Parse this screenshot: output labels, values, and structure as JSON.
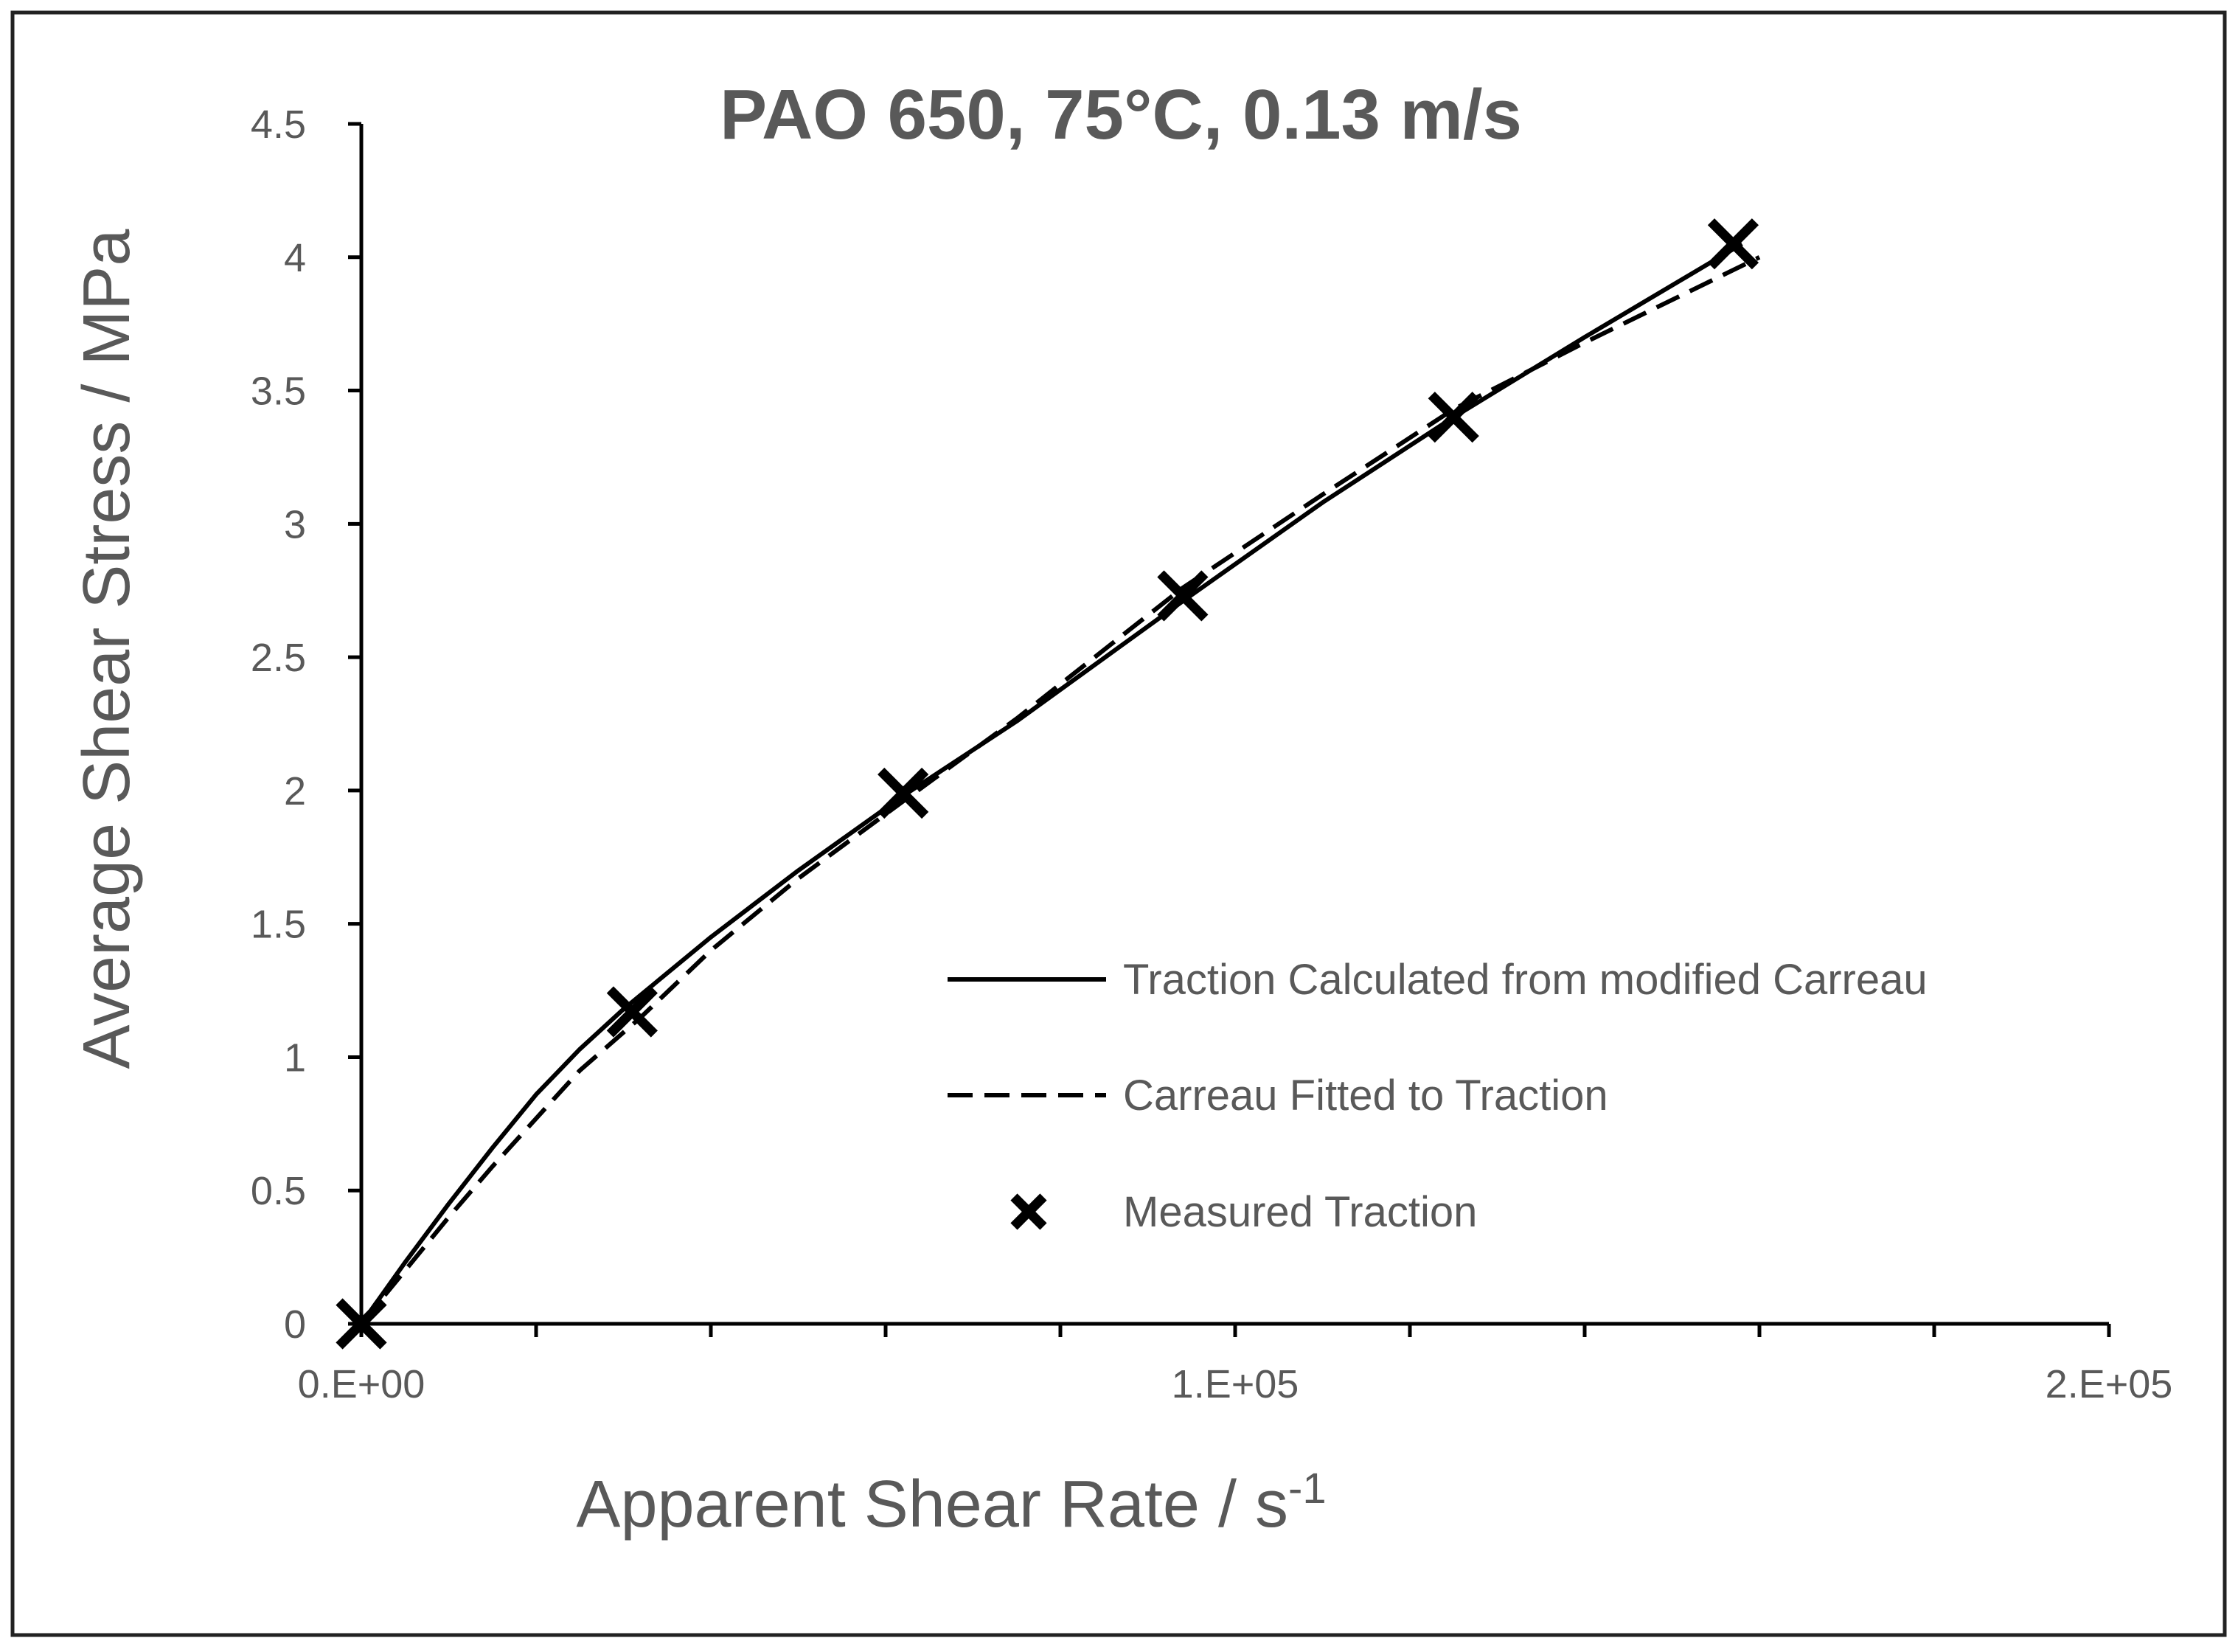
{
  "chart_data": {
    "type": "line",
    "title": "PAO 650, 75°C, 0.13 m/s",
    "xlabel": "Apparent Shear Rate / s",
    "xlabel_superscript": "-1",
    "ylabel": "Average Shear Stress / MPa",
    "xlim": [
      0,
      200000
    ],
    "ylim": [
      0,
      4.5
    ],
    "x_ticks": [
      0,
      100000,
      200000
    ],
    "x_tick_labels": [
      "0.E+00",
      "1.E+05",
      "2.E+05"
    ],
    "x_minor_step": 20000,
    "y_ticks": [
      0,
      0.5,
      1,
      1.5,
      2,
      2.5,
      3,
      3.5,
      4,
      4.5
    ],
    "y_tick_labels": [
      "0",
      "0.5",
      "1",
      "1.5",
      "2",
      "2.5",
      "3",
      "3.5",
      "4",
      "4.5"
    ],
    "grid": false,
    "legend_position": "lower-right",
    "series": [
      {
        "name": "Traction Calculated from modified Carreau",
        "style": "solid",
        "x": [
          0,
          5000,
          10000,
          15000,
          20000,
          25000,
          30000,
          40000,
          50000,
          62000,
          75000,
          94000,
          110000,
          125000,
          140000,
          158000
        ],
        "y": [
          0,
          0.23,
          0.45,
          0.66,
          0.86,
          1.03,
          1.18,
          1.45,
          1.7,
          1.98,
          2.26,
          2.71,
          3.08,
          3.4,
          3.7,
          4.05
        ]
      },
      {
        "name": "Carreau Fitted to Traction",
        "style": "dashed",
        "x": [
          0,
          5000,
          10000,
          15000,
          20000,
          25000,
          32000,
          40000,
          50000,
          62000,
          75000,
          94000,
          110000,
          125000,
          140000,
          160000
        ],
        "y": [
          0,
          0.2,
          0.4,
          0.59,
          0.77,
          0.95,
          1.15,
          1.4,
          1.67,
          1.96,
          2.27,
          2.76,
          3.11,
          3.43,
          3.68,
          4.0
        ]
      },
      {
        "name": "Measured Traction",
        "style": "markers",
        "marker": "x",
        "x": [
          0,
          31000,
          62000,
          94000,
          125000,
          157000
        ],
        "y": [
          0,
          1.17,
          1.99,
          2.73,
          3.4,
          4.05
        ]
      }
    ]
  }
}
